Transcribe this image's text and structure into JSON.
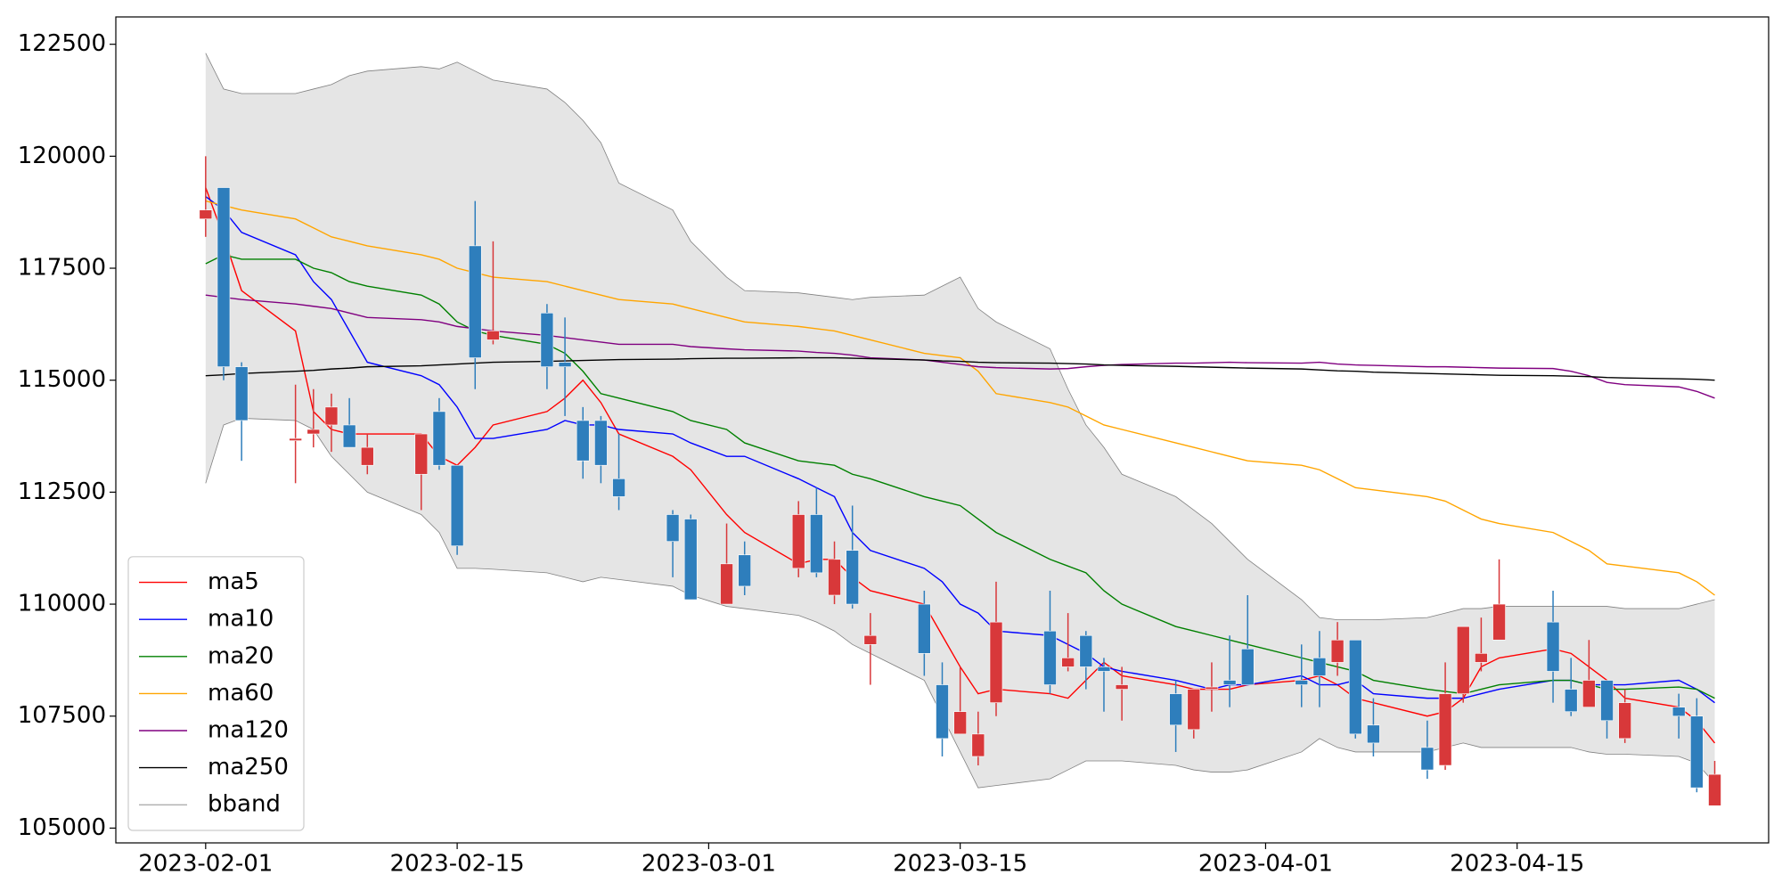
{
  "chart_data": {
    "type": "candlestick",
    "x": [
      "2023-02-01",
      "2023-02-02",
      "2023-02-03",
      "2023-02-06",
      "2023-02-07",
      "2023-02-08",
      "2023-02-09",
      "2023-02-10",
      "2023-02-13",
      "2023-02-14",
      "2023-02-15",
      "2023-02-16",
      "2023-02-17",
      "2023-02-20",
      "2023-02-21",
      "2023-02-22",
      "2023-02-23",
      "2023-02-24",
      "2023-02-27",
      "2023-02-28",
      "2023-03-02",
      "2023-03-03",
      "2023-03-06",
      "2023-03-07",
      "2023-03-08",
      "2023-03-09",
      "2023-03-10",
      "2023-03-13",
      "2023-03-14",
      "2023-03-15",
      "2023-03-16",
      "2023-03-17",
      "2023-03-20",
      "2023-03-21",
      "2023-03-22",
      "2023-03-23",
      "2023-03-24",
      "2023-03-27",
      "2023-03-28",
      "2023-03-29",
      "2023-03-30",
      "2023-03-31",
      "2023-04-03",
      "2023-04-04",
      "2023-04-05",
      "2023-04-06",
      "2023-04-07",
      "2023-04-10",
      "2023-04-11",
      "2023-04-12",
      "2023-04-13",
      "2023-04-14",
      "2023-04-17",
      "2023-04-18",
      "2023-04-19",
      "2023-04-20",
      "2023-04-21",
      "2023-04-24",
      "2023-04-25",
      "2023-04-26"
    ],
    "open": [
      118600,
      119300,
      115300,
      113650,
      113800,
      114000,
      114000,
      113100,
      112900,
      114300,
      113100,
      118000,
      115900,
      116500,
      115400,
      114100,
      114100,
      112800,
      112000,
      111900,
      110000,
      111100,
      110800,
      112000,
      110200,
      111200,
      109100,
      110000,
      108200,
      107100,
      106600,
      107800,
      109400,
      108600,
      109300,
      108600,
      108100,
      108000,
      107200,
      108100,
      108300,
      109000,
      108300,
      108800,
      108700,
      109200,
      107300,
      106800,
      106400,
      108000,
      108700,
      109200,
      109600,
      108100,
      107700,
      108300,
      107000,
      107700,
      107500,
      105500
    ],
    "close": [
      118800,
      115300,
      114100,
      113700,
      113900,
      114400,
      113500,
      113500,
      113800,
      113100,
      111300,
      115500,
      116100,
      115300,
      115300,
      113200,
      113100,
      112400,
      111400,
      110100,
      110900,
      110400,
      112000,
      110700,
      111000,
      110000,
      109300,
      108900,
      107000,
      107600,
      107100,
      109600,
      108200,
      108800,
      108600,
      108500,
      108200,
      107300,
      108100,
      108150,
      108200,
      108200,
      108200,
      108400,
      109200,
      107100,
      106900,
      106300,
      108000,
      109500,
      108900,
      110000,
      108500,
      107600,
      108300,
      107400,
      107800,
      107500,
      105900,
      106200
    ],
    "high": [
      120000,
      119300,
      115400,
      114900,
      114800,
      114700,
      114600,
      113800,
      113800,
      114600,
      113100,
      119000,
      118100,
      116700,
      116400,
      114400,
      114200,
      113800,
      112100,
      112000,
      111800,
      111400,
      112300,
      112600,
      111400,
      112200,
      109800,
      110300,
      108700,
      108600,
      107600,
      110500,
      110300,
      109800,
      109400,
      108800,
      108600,
      108300,
      108100,
      108700,
      109300,
      110200,
      109100,
      109400,
      109600,
      109200,
      107900,
      107400,
      108700,
      109500,
      109700,
      111000,
      110300,
      108800,
      109200,
      108300,
      108100,
      108000,
      107900,
      106500
    ],
    "low": [
      118200,
      115000,
      113200,
      112700,
      113500,
      113400,
      113500,
      112900,
      112100,
      113000,
      111100,
      114800,
      115800,
      114800,
      114200,
      112800,
      112700,
      112100,
      110600,
      110100,
      110000,
      110200,
      110600,
      110600,
      110000,
      109900,
      108200,
      108400,
      106600,
      107100,
      106400,
      107500,
      108000,
      108500,
      108100,
      107600,
      107400,
      106700,
      107000,
      107600,
      107700,
      108200,
      107700,
      107700,
      108400,
      107000,
      106600,
      106100,
      106300,
      107800,
      108500,
      109200,
      107800,
      107500,
      107700,
      107000,
      106900,
      107000,
      105800,
      105500
    ],
    "up_color": "#d8383a",
    "down_color": "#2e7ebc",
    "series": [
      {
        "name": "ma5",
        "color": "#ff0000",
        "values": [
          119300,
          118200,
          117000,
          116100,
          114300,
          113900,
          113800,
          113800,
          113800,
          113300,
          113100,
          113500,
          114000,
          114300,
          114600,
          115000,
          114500,
          113800,
          113300,
          113000,
          112000,
          111600,
          110900,
          111000,
          111000,
          110600,
          110300,
          110000,
          109300,
          108600,
          108000,
          108100,
          108000,
          107900,
          108300,
          108700,
          108400,
          108200,
          108100,
          108100,
          108100,
          108200,
          108300,
          108400,
          108200,
          107900,
          107800,
          107500,
          107600,
          107900,
          108600,
          108800,
          109000,
          108900,
          108600,
          108300,
          107900,
          107700,
          107400,
          106900
        ]
      },
      {
        "name": "ma10",
        "color": "#0000ff",
        "values": [
          119100,
          118800,
          118300,
          117800,
          117200,
          116800,
          116100,
          115400,
          115100,
          114900,
          114400,
          113700,
          113700,
          113900,
          114100,
          114000,
          114000,
          113900,
          113800,
          113600,
          113300,
          113300,
          112800,
          112600,
          112400,
          111600,
          111200,
          110800,
          110500,
          110000,
          109800,
          109400,
          109300,
          109100,
          108900,
          108600,
          108500,
          108300,
          108200,
          108100,
          108200,
          108200,
          108400,
          108200,
          108200,
          108300,
          108000,
          107900,
          107900,
          107900,
          108000,
          108100,
          108300,
          108300,
          108200,
          108200,
          108200,
          108300,
          108100,
          107800
        ]
      },
      {
        "name": "ma20",
        "color": "#008000",
        "values": [
          117600,
          117800,
          117700,
          117700,
          117500,
          117400,
          117200,
          117100,
          116900,
          116700,
          116300,
          116100,
          116000,
          115800,
          115600,
          115200,
          114700,
          114600,
          114300,
          114100,
          113900,
          113600,
          113200,
          113150,
          113100,
          112900,
          112800,
          112400,
          112300,
          112200,
          111900,
          111600,
          111000,
          110850,
          110700,
          110300,
          110000,
          109500,
          109400,
          109300,
          109200,
          109100,
          108800,
          108700,
          108600,
          108500,
          108300,
          108100,
          108050,
          108000,
          108100,
          108200,
          108300,
          108300,
          108200,
          108100,
          108100,
          108150,
          108100,
          107900
        ]
      },
      {
        "name": "ma60",
        "color": "#ffa500",
        "values": [
          119000,
          118900,
          118800,
          118600,
          118400,
          118200,
          118100,
          118000,
          117800,
          117700,
          117500,
          117400,
          117300,
          117200,
          117100,
          117000,
          116900,
          116800,
          116700,
          116600,
          116400,
          116300,
          116200,
          116150,
          116100,
          116000,
          115900,
          115600,
          115550,
          115500,
          115200,
          114700,
          114500,
          114400,
          114200,
          114000,
          113900,
          113600,
          113500,
          113400,
          113300,
          113200,
          113100,
          113000,
          112800,
          112600,
          112550,
          112400,
          112300,
          112100,
          111900,
          111800,
          111600,
          111400,
          111200,
          110900,
          110850,
          110700,
          110500,
          110200
        ]
      },
      {
        "name": "ma120",
        "color": "#800080",
        "values": [
          116900,
          116850,
          116800,
          116700,
          116650,
          116600,
          116500,
          116400,
          116350,
          116300,
          116200,
          116150,
          116100,
          116000,
          115950,
          115900,
          115850,
          115800,
          115800,
          115750,
          115700,
          115680,
          115650,
          115620,
          115600,
          115560,
          115500,
          115450,
          115400,
          115350,
          115300,
          115280,
          115250,
          115260,
          115300,
          115330,
          115350,
          115380,
          115380,
          115390,
          115400,
          115390,
          115380,
          115400,
          115360,
          115340,
          115330,
          115300,
          115300,
          115290,
          115280,
          115270,
          115260,
          115200,
          115100,
          114950,
          114900,
          114850,
          114750,
          114600
        ]
      },
      {
        "name": "ma250",
        "color": "#000000",
        "values": [
          115100,
          115120,
          115150,
          115200,
          115220,
          115250,
          115270,
          115300,
          115320,
          115340,
          115360,
          115380,
          115400,
          115420,
          115430,
          115440,
          115450,
          115460,
          115470,
          115480,
          115490,
          115490,
          115500,
          115500,
          115500,
          115490,
          115480,
          115450,
          115430,
          115420,
          115400,
          115390,
          115380,
          115370,
          115360,
          115340,
          115330,
          115310,
          115300,
          115290,
          115280,
          115270,
          115250,
          115230,
          115210,
          115200,
          115180,
          115150,
          115140,
          115130,
          115120,
          115110,
          115100,
          115090,
          115080,
          115060,
          115050,
          115030,
          115020,
          115000
        ]
      }
    ],
    "bband": {
      "name": "bband",
      "color": "#808080",
      "fill": "#e5e5e5",
      "upper": [
        122300,
        121500,
        121400,
        121400,
        121500,
        121600,
        121800,
        121900,
        122000,
        121950,
        122100,
        121900,
        121700,
        121500,
        121200,
        120800,
        120300,
        119400,
        118800,
        118100,
        117300,
        117000,
        116950,
        116900,
        116850,
        116800,
        116850,
        116900,
        117100,
        117300,
        116600,
        116300,
        115700,
        114800,
        114000,
        113500,
        112900,
        112400,
        112100,
        111800,
        111400,
        111000,
        110100,
        109700,
        109650,
        109650,
        109650,
        109700,
        109800,
        109900,
        109900,
        109950,
        109950,
        109950,
        109950,
        109950,
        109900,
        109900,
        110000,
        110100
      ],
      "lower": [
        112700,
        114000,
        114150,
        114100,
        113900,
        113300,
        112900,
        112500,
        112000,
        111600,
        110800,
        110800,
        110780,
        110700,
        110600,
        110500,
        110600,
        110550,
        110400,
        110200,
        109950,
        109900,
        109750,
        109600,
        109400,
        109100,
        108900,
        108300,
        107500,
        106700,
        105900,
        105950,
        106100,
        106300,
        106500,
        106500,
        106500,
        106400,
        106300,
        106250,
        106250,
        106300,
        106700,
        107000,
        106800,
        106700,
        106700,
        106700,
        106800,
        106900,
        106800,
        106800,
        106800,
        106800,
        106700,
        106650,
        106650,
        106600,
        106450,
        106000
      ]
    },
    "xlim": [
      "2023-01-27",
      "2023-04-29"
    ],
    "xticks": [
      "2023-02-01",
      "2023-02-15",
      "2023-03-01",
      "2023-03-15",
      "2023-04-01",
      "2023-04-15"
    ],
    "ylim": [
      104670,
      123110
    ],
    "yticks": [
      105000,
      107500,
      110000,
      112500,
      115000,
      117500,
      120000,
      122500
    ],
    "legend": "lower left"
  }
}
